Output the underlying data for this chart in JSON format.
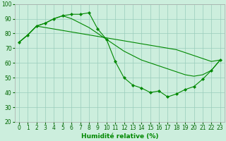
{
  "xlabel": "Humidité relative (%)",
  "background_color": "#cceedd",
  "grid_color": "#99ccbb",
  "line_color": "#008800",
  "xlim_min": -0.5,
  "xlim_max": 23.5,
  "ylim_min": 20,
  "ylim_max": 100,
  "yticks": [
    20,
    30,
    40,
    50,
    60,
    70,
    80,
    90,
    100
  ],
  "xticks": [
    0,
    1,
    2,
    3,
    4,
    5,
    6,
    7,
    8,
    9,
    10,
    11,
    12,
    13,
    14,
    15,
    16,
    17,
    18,
    19,
    20,
    21,
    22,
    23
  ],
  "series": [
    {
      "x": [
        0,
        1,
        2,
        3,
        4,
        5,
        6,
        7,
        8,
        9,
        10,
        11,
        12,
        13,
        14,
        15,
        16,
        17,
        18,
        19,
        20,
        21,
        22,
        23
      ],
      "y": [
        74,
        79,
        85,
        87,
        90,
        92,
        93,
        93,
        94,
        83,
        76,
        61,
        50,
        45,
        43,
        40,
        41,
        37,
        39,
        42,
        44,
        49,
        55,
        62
      ],
      "has_markers": true
    },
    {
      "x": [
        0,
        1,
        2,
        3,
        4,
        5,
        6,
        7,
        8,
        9,
        10,
        11,
        12,
        13,
        14,
        15,
        16,
        17,
        18,
        19,
        20,
        21,
        22,
        23
      ],
      "y": [
        74,
        79,
        85,
        84,
        83,
        82,
        81,
        80,
        79,
        78,
        77,
        76,
        75,
        74,
        73,
        72,
        71,
        70,
        69,
        67,
        65,
        63,
        61,
        62
      ],
      "has_markers": false
    },
    {
      "x": [
        0,
        1,
        2,
        3,
        4,
        5,
        6,
        7,
        8,
        9,
        10,
        11,
        12,
        13,
        14,
        15,
        16,
        17,
        18,
        19,
        20,
        21,
        22,
        23
      ],
      "y": [
        74,
        79,
        85,
        87,
        90,
        92,
        90,
        87,
        84,
        80,
        76,
        72,
        68,
        65,
        62,
        60,
        58,
        56,
        54,
        52,
        51,
        52,
        55,
        62
      ],
      "has_markers": false
    }
  ]
}
